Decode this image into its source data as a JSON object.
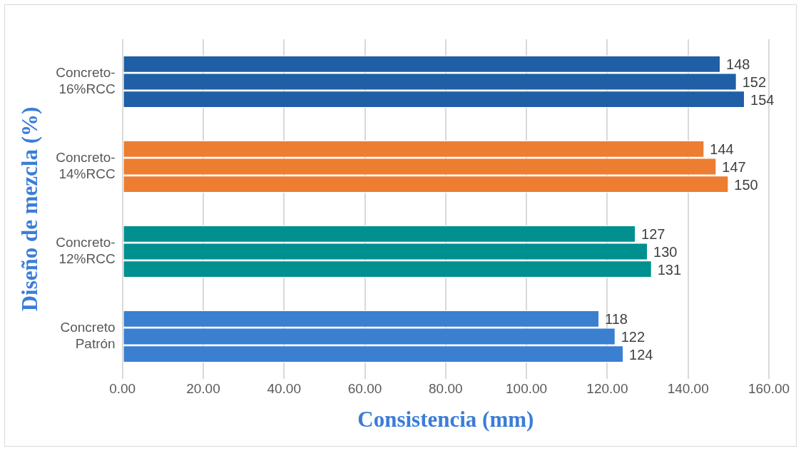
{
  "chart_data": {
    "type": "bar",
    "orientation": "horizontal",
    "xlabel": "Consistencia (mm)",
    "ylabel": "Diseño de mezcla (%)",
    "categories": [
      "Concreto-16%RCC",
      "Concreto-14%RCC",
      "Concreto-12%RCC",
      "Concreto Patrón"
    ],
    "series": [
      {
        "colors": [
          "#1f5fa6",
          "#ed7d31",
          "#00908f",
          "#3a7fd0"
        ],
        "values": [
          148,
          144,
          127,
          118
        ]
      },
      {
        "colors": [
          "#1f5fa6",
          "#ed7d31",
          "#00908f",
          "#3a7fd0"
        ],
        "values": [
          152,
          147,
          130,
          122
        ]
      },
      {
        "colors": [
          "#1f5fa6",
          "#ed7d31",
          "#00908f",
          "#3a7fd0"
        ],
        "values": [
          154,
          150,
          131,
          124
        ]
      }
    ],
    "xlim": [
      0,
      160
    ],
    "xticks": [
      {
        "value": 0,
        "label": "0.00"
      },
      {
        "value": 20,
        "label": "20.00"
      },
      {
        "value": 40,
        "label": "40.00"
      },
      {
        "value": 60,
        "label": "60.00"
      },
      {
        "value": 80,
        "label": "80.00"
      },
      {
        "value": 100,
        "label": "100.00"
      },
      {
        "value": 120,
        "label": "120.00"
      },
      {
        "value": 140,
        "label": "140.00"
      },
      {
        "value": 160,
        "label": "160.00"
      }
    ],
    "grid": "x",
    "data_labels": true,
    "legend": false
  }
}
